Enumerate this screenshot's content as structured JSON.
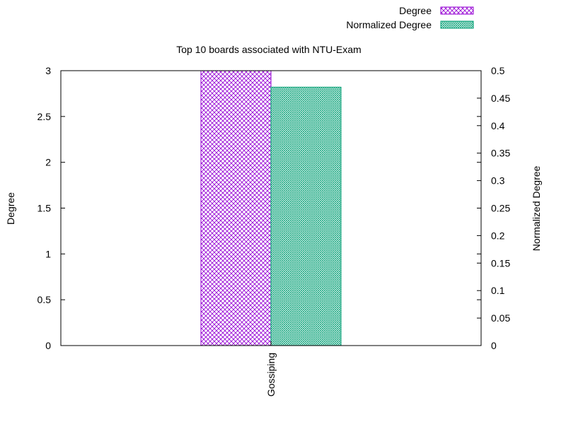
{
  "chart_data": {
    "type": "bar",
    "title": "Top 10 boards associated with NTU-Exam",
    "categories": [
      "Gossiping"
    ],
    "series": [
      {
        "name": "Degree",
        "axis": "left",
        "values": [
          3
        ],
        "color": "#9400d3",
        "pattern": "crosshatch"
      },
      {
        "name": "Normalized Degree",
        "axis": "right",
        "values": [
          0.47
        ],
        "color": "#009e73",
        "pattern": "fine-mesh"
      }
    ],
    "ylabel": "Degree",
    "y2label": "Normalized Degree",
    "ylim": [
      0,
      3
    ],
    "y2lim": [
      0,
      0.5
    ],
    "yticks": [
      "0",
      "0.5",
      "1",
      "1.5",
      "2",
      "2.5",
      "3"
    ],
    "y2ticks": [
      "0",
      "0.05",
      "0.1",
      "0.15",
      "0.2",
      "0.25",
      "0.3",
      "0.35",
      "0.4",
      "0.45",
      "0.5"
    ],
    "legend_position": "top-right",
    "grid": false
  }
}
